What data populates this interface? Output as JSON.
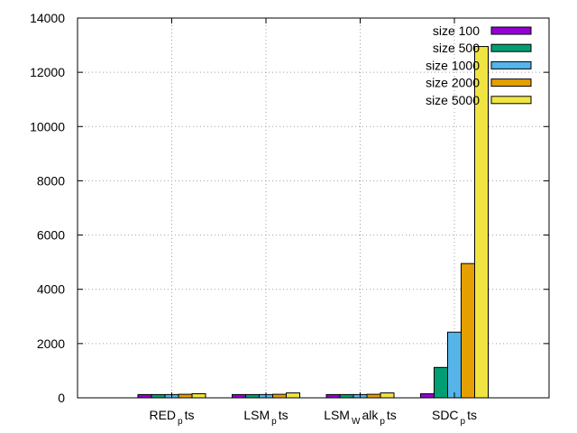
{
  "chart_data": {
    "type": "bar",
    "title": "",
    "xlabel": "",
    "ylabel": "",
    "categories": [
      {
        "main": "RED",
        "sub": "p",
        "tail": "ts"
      },
      {
        "main": "LSM",
        "sub": "p",
        "tail": "ts"
      },
      {
        "main": "LSM",
        "sub": "W",
        "tail": "alk",
        "sub2": "p",
        "tail2": "ts"
      },
      {
        "main": "SDC",
        "sub": "p",
        "tail": "ts"
      }
    ],
    "series": [
      {
        "name": "size 100",
        "color": "#9400d3",
        "values": [
          120,
          120,
          120,
          150
        ]
      },
      {
        "name": "size 500",
        "color": "#009e73",
        "values": [
          120,
          120,
          120,
          1120
        ]
      },
      {
        "name": "size 1000",
        "color": "#56b4e9",
        "values": [
          120,
          120,
          120,
          2420
        ]
      },
      {
        "name": "size 2000",
        "color": "#e69f00",
        "values": [
          130,
          130,
          130,
          4950
        ]
      },
      {
        "name": "size 5000",
        "color": "#f0e442",
        "values": [
          150,
          180,
          180,
          12950
        ]
      }
    ],
    "ylim": [
      0,
      14000
    ],
    "yticks": [
      0,
      2000,
      4000,
      6000,
      8000,
      10000,
      12000,
      14000
    ],
    "grid": true,
    "legend": "top-right"
  }
}
